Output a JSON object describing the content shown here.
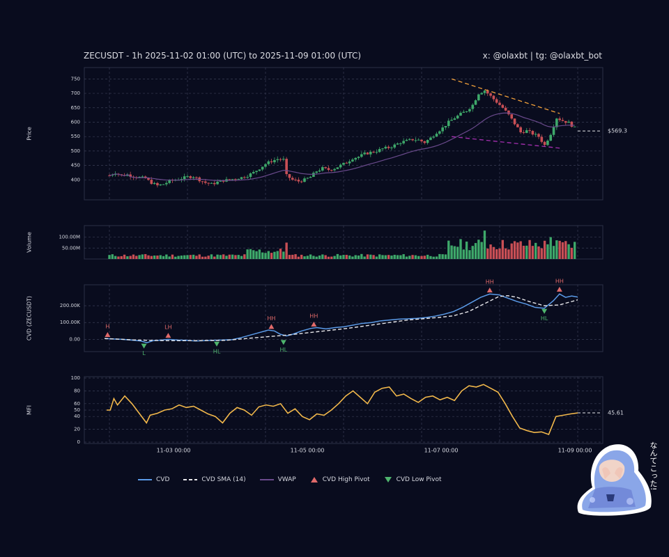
{
  "header": {
    "title": "ZECUSDT - 1h 2025-11-02 01:00 (UTC) to 2025-11-09 01:00 (UTC)",
    "credits": "x: @olaxbt | tg: @olaxbt_bot"
  },
  "colors": {
    "background": "#090c1e",
    "up": "#3ea86a",
    "down": "#c94f55",
    "cvd": "#5b9be8",
    "cvd_sma": "#e8e8ec",
    "vwap": "#6a4a8c",
    "mfi": "#f2b84b",
    "resistance": "#f2a03a",
    "support": "#a52fb0",
    "pivot_high": "#e06a6a",
    "pivot_low": "#4fb56e"
  },
  "legend": [
    {
      "key": "cvd",
      "label": "CVD"
    },
    {
      "key": "cvd_sma",
      "label": "CVD SMA (14)"
    },
    {
      "key": "vwap",
      "label": "VWAP"
    },
    {
      "key": "pivot_high",
      "label": "CVD High Pivot"
    },
    {
      "key": "pivot_low",
      "label": "CVD Low Pivot"
    }
  ],
  "sticker": {
    "text": "なんてこった!"
  },
  "chart_data": [
    {
      "type": "candlestick",
      "ylabel": "Price",
      "ylim": [
        350,
        775
      ],
      "yticks": [
        400,
        450,
        500,
        550,
        600,
        650,
        700,
        750
      ],
      "current_price_label": "$569.3",
      "current_price": 569.3,
      "close_path": [
        [
          0,
          415
        ],
        [
          2,
          425
        ],
        [
          4,
          415
        ],
        [
          6,
          418
        ],
        [
          9,
          410
        ],
        [
          12,
          405
        ],
        [
          14,
          390
        ],
        [
          16,
          380
        ],
        [
          18,
          385
        ],
        [
          20,
          395
        ],
        [
          22,
          400
        ],
        [
          24,
          405
        ],
        [
          26,
          410
        ],
        [
          28,
          412
        ],
        [
          30,
          400
        ],
        [
          32,
          390
        ],
        [
          34,
          385
        ],
        [
          36,
          392
        ],
        [
          38,
          398
        ],
        [
          40,
          400
        ],
        [
          42,
          405
        ],
        [
          44,
          408
        ],
        [
          46,
          415
        ],
        [
          48,
          425
        ],
        [
          50,
          440
        ],
        [
          52,
          455
        ],
        [
          54,
          465
        ],
        [
          56,
          472
        ],
        [
          58,
          470
        ],
        [
          59,
          415
        ],
        [
          61,
          400
        ],
        [
          63,
          395
        ],
        [
          65,
          400
        ],
        [
          67,
          410
        ],
        [
          69,
          430
        ],
        [
          71,
          440
        ],
        [
          73,
          435
        ],
        [
          75,
          440
        ],
        [
          77,
          450
        ],
        [
          79,
          460
        ],
        [
          81,
          475
        ],
        [
          83,
          480
        ],
        [
          85,
          490
        ],
        [
          87,
          495
        ],
        [
          89,
          500
        ],
        [
          91,
          508
        ],
        [
          93,
          512
        ],
        [
          95,
          520
        ],
        [
          97,
          530
        ],
        [
          99,
          535
        ],
        [
          101,
          540
        ],
        [
          103,
          538
        ],
        [
          105,
          530
        ],
        [
          107,
          545
        ],
        [
          109,
          565
        ],
        [
          111,
          580
        ],
        [
          113,
          600
        ],
        [
          115,
          615
        ],
        [
          117,
          628
        ],
        [
          119,
          640
        ],
        [
          121,
          660
        ],
        [
          123,
          700
        ],
        [
          125,
          710
        ],
        [
          127,
          690
        ],
        [
          129,
          670
        ],
        [
          131,
          650
        ],
        [
          133,
          625
        ],
        [
          135,
          595
        ],
        [
          137,
          565
        ],
        [
          139,
          570
        ],
        [
          141,
          560
        ],
        [
          143,
          550
        ],
        [
          145,
          520
        ],
        [
          147,
          560
        ],
        [
          149,
          615
        ],
        [
          151,
          605
        ],
        [
          153,
          598
        ],
        [
          155,
          580
        ],
        [
          156,
          569.3
        ]
      ],
      "x_range": [
        0,
        156
      ],
      "x_ticks": [
        {
          "x": 22,
          "label": "11-03 00:00"
        },
        {
          "x": 70,
          "label": "11-05 00:00"
        },
        {
          "x": 118,
          "label": "11-07 00:00"
        },
        {
          "x": 166,
          "label": "11-09 00:00"
        }
      ],
      "trendlines": [
        {
          "name": "resistance",
          "x0": 114,
          "y0": 750,
          "x1": 150,
          "y1": 630
        },
        {
          "name": "support",
          "x0": 114,
          "y0": 550,
          "x1": 150,
          "y1": 510
        }
      ]
    },
    {
      "type": "bar",
      "ylabel": "Volume",
      "ylim": [
        0,
        140
      ],
      "ytick_labels": [
        "50.00M",
        "100.00M"
      ],
      "yticks": [
        50,
        100
      ],
      "unit": "M"
    },
    {
      "type": "line",
      "ylabel": "CVD (ZECUSDT)",
      "ylim": [
        -40,
        300
      ],
      "yticks": [
        0,
        100,
        200
      ],
      "ytick_labels": [
        "0.00",
        "100.00K",
        "200.00K"
      ],
      "cvd": [
        [
          0,
          5
        ],
        [
          3,
          2
        ],
        [
          6,
          0
        ],
        [
          9,
          -5
        ],
        [
          12,
          -10
        ],
        [
          14,
          -20
        ],
        [
          16,
          -8
        ],
        [
          18,
          -6
        ],
        [
          21,
          0
        ],
        [
          24,
          -4
        ],
        [
          27,
          -6
        ],
        [
          30,
          -10
        ],
        [
          33,
          -8
        ],
        [
          36,
          -6
        ],
        [
          39,
          -4
        ],
        [
          42,
          -2
        ],
        [
          45,
          10
        ],
        [
          48,
          25
        ],
        [
          51,
          40
        ],
        [
          54,
          55
        ],
        [
          56,
          50
        ],
        [
          58,
          30
        ],
        [
          60,
          20
        ],
        [
          62,
          30
        ],
        [
          65,
          50
        ],
        [
          68,
          65
        ],
        [
          70,
          70
        ],
        [
          73,
          62
        ],
        [
          76,
          70
        ],
        [
          79,
          75
        ],
        [
          82,
          85
        ],
        [
          85,
          95
        ],
        [
          88,
          100
        ],
        [
          91,
          110
        ],
        [
          94,
          115
        ],
        [
          97,
          120
        ],
        [
          100,
          122
        ],
        [
          103,
          125
        ],
        [
          106,
          130
        ],
        [
          109,
          138
        ],
        [
          112,
          150
        ],
        [
          115,
          165
        ],
        [
          118,
          190
        ],
        [
          121,
          220
        ],
        [
          124,
          250
        ],
        [
          127,
          270
        ],
        [
          130,
          265
        ],
        [
          133,
          245
        ],
        [
          136,
          225
        ],
        [
          139,
          210
        ],
        [
          142,
          190
        ],
        [
          145,
          185
        ],
        [
          148,
          230
        ],
        [
          150,
          270
        ],
        [
          152,
          250
        ],
        [
          154,
          258
        ],
        [
          156,
          252
        ]
      ],
      "cvd_sma": [
        [
          0,
          5
        ],
        [
          10,
          -4
        ],
        [
          20,
          -8
        ],
        [
          30,
          -8
        ],
        [
          40,
          -6
        ],
        [
          50,
          10
        ],
        [
          60,
          25
        ],
        [
          70,
          45
        ],
        [
          80,
          65
        ],
        [
          90,
          90
        ],
        [
          100,
          115
        ],
        [
          110,
          130
        ],
        [
          115,
          140
        ],
        [
          120,
          165
        ],
        [
          125,
          210
        ],
        [
          130,
          255
        ],
        [
          133,
          260
        ],
        [
          136,
          250
        ],
        [
          140,
          225
        ],
        [
          145,
          200
        ],
        [
          150,
          205
        ],
        [
          156,
          235
        ]
      ],
      "pivots": [
        {
          "kind": "high",
          "label": "H",
          "x": 1,
          "y": 10
        },
        {
          "kind": "low",
          "label": "L",
          "x": 13,
          "y": -22
        },
        {
          "kind": "high",
          "label": "LH",
          "x": 21,
          "y": 5
        },
        {
          "kind": "low",
          "label": "HL",
          "x": 37,
          "y": -10
        },
        {
          "kind": "high",
          "label": "HH",
          "x": 55,
          "y": 58
        },
        {
          "kind": "low",
          "label": "HL",
          "x": 59,
          "y": 0
        },
        {
          "kind": "high",
          "label": "HH",
          "x": 69,
          "y": 72
        },
        {
          "kind": "high",
          "label": "HH",
          "x": 127,
          "y": 275
        },
        {
          "kind": "low",
          "label": "HL",
          "x": 145,
          "y": 185
        },
        {
          "kind": "high",
          "label": "HH",
          "x": 150,
          "y": 280
        }
      ]
    },
    {
      "type": "line",
      "ylabel": "MFI",
      "ylim": [
        0,
        100
      ],
      "yticks": [
        0,
        20,
        40,
        50,
        60,
        80,
        100
      ],
      "current_label": "45.61",
      "current": 45.61,
      "mfi": [
        [
          0,
          50
        ],
        [
          1,
          50
        ],
        [
          2,
          68
        ],
        [
          3,
          58
        ],
        [
          5,
          72
        ],
        [
          7,
          60
        ],
        [
          9,
          45
        ],
        [
          11,
          30
        ],
        [
          12,
          42
        ],
        [
          14,
          45
        ],
        [
          16,
          50
        ],
        [
          18,
          52
        ],
        [
          20,
          58
        ],
        [
          22,
          54
        ],
        [
          24,
          56
        ],
        [
          26,
          50
        ],
        [
          28,
          44
        ],
        [
          30,
          40
        ],
        [
          32,
          30
        ],
        [
          34,
          45
        ],
        [
          36,
          54
        ],
        [
          38,
          50
        ],
        [
          40,
          42
        ],
        [
          42,
          55
        ],
        [
          44,
          58
        ],
        [
          46,
          56
        ],
        [
          48,
          60
        ],
        [
          50,
          45
        ],
        [
          52,
          52
        ],
        [
          54,
          40
        ],
        [
          56,
          35
        ],
        [
          58,
          44
        ],
        [
          60,
          42
        ],
        [
          62,
          50
        ],
        [
          64,
          60
        ],
        [
          66,
          72
        ],
        [
          68,
          80
        ],
        [
          70,
          70
        ],
        [
          72,
          60
        ],
        [
          74,
          78
        ],
        [
          76,
          84
        ],
        [
          78,
          86
        ],
        [
          80,
          72
        ],
        [
          82,
          75
        ],
        [
          84,
          68
        ],
        [
          86,
          62
        ],
        [
          88,
          70
        ],
        [
          90,
          72
        ],
        [
          92,
          66
        ],
        [
          94,
          70
        ],
        [
          96,
          65
        ],
        [
          98,
          80
        ],
        [
          100,
          88
        ],
        [
          102,
          86
        ],
        [
          104,
          90
        ],
        [
          106,
          84
        ],
        [
          108,
          78
        ],
        [
          110,
          60
        ],
        [
          112,
          40
        ],
        [
          114,
          22
        ],
        [
          116,
          18
        ],
        [
          118,
          15
        ],
        [
          120,
          16
        ],
        [
          122,
          12
        ],
        [
          124,
          40
        ],
        [
          126,
          42
        ],
        [
          128,
          44
        ],
        [
          130,
          45.61
        ]
      ],
      "x_range": [
        0,
        130
      ]
    }
  ]
}
